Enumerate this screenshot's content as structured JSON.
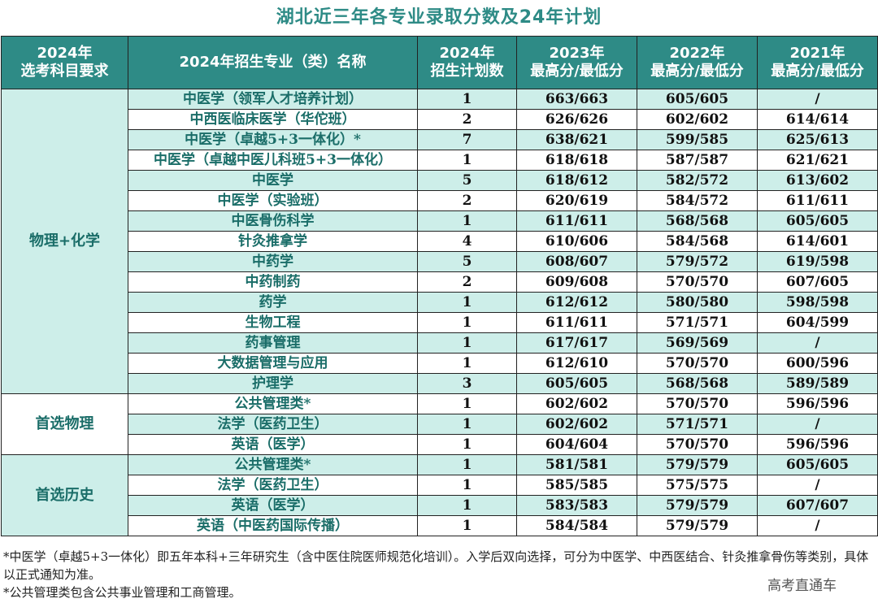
{
  "title": "湖北近三年各专业录取分数及24年计划",
  "headers": [
    [
      "2024年",
      "选考科目要求"
    ],
    [
      "2024年招生专业（类）名称"
    ],
    [
      "2024年",
      "招生计划数"
    ],
    [
      "2023年",
      "最高分/最低分"
    ],
    [
      "2022年",
      "最高分/最低分"
    ],
    [
      "2021年",
      "最高分/最低分"
    ]
  ],
  "groups": [
    {
      "subject": "物理+化学",
      "rows": [
        {
          "major": "中医学（领军人才培养计划）",
          "plan": "1",
          "y2023": "663/663",
          "y2022": "605/605",
          "y2021": "/"
        },
        {
          "major": "中西医临床医学（华佗班）",
          "plan": "2",
          "y2023": "626/626",
          "y2022": "602/602",
          "y2021": "614/614"
        },
        {
          "major": "中医学（卓越5+3一体化）*",
          "plan": "7",
          "y2023": "638/621",
          "y2022": "599/585",
          "y2021": "625/613"
        },
        {
          "major": "中医学（卓越中医儿科班5+3一体化）",
          "plan": "1",
          "y2023": "618/618",
          "y2022": "587/587",
          "y2021": "621/621"
        },
        {
          "major": "中医学",
          "plan": "5",
          "y2023": "618/612",
          "y2022": "582/572",
          "y2021": "613/602"
        },
        {
          "major": "中医学（实验班）",
          "plan": "2",
          "y2023": "620/619",
          "y2022": "584/572",
          "y2021": "611/611"
        },
        {
          "major": "中医骨伤科学",
          "plan": "1",
          "y2023": "611/611",
          "y2022": "568/568",
          "y2021": "605/605"
        },
        {
          "major": "针灸推拿学",
          "plan": "4",
          "y2023": "610/606",
          "y2022": "584/568",
          "y2021": "614/601"
        },
        {
          "major": "中药学",
          "plan": "5",
          "y2023": "608/607",
          "y2022": "579/572",
          "y2021": "619/598"
        },
        {
          "major": "中药制药",
          "plan": "2",
          "y2023": "609/608",
          "y2022": "570/570",
          "y2021": "607/605"
        },
        {
          "major": "药学",
          "plan": "1",
          "y2023": "612/612",
          "y2022": "580/580",
          "y2021": "598/598"
        },
        {
          "major": "生物工程",
          "plan": "1",
          "y2023": "611/611",
          "y2022": "571/571",
          "y2021": "604/599"
        },
        {
          "major": "药事管理",
          "plan": "1",
          "y2023": "617/617",
          "y2022": "569/569",
          "y2021": "/"
        },
        {
          "major": "大数据管理与应用",
          "plan": "1",
          "y2023": "612/610",
          "y2022": "570/570",
          "y2021": "600/596"
        },
        {
          "major": "护理学",
          "plan": "3",
          "y2023": "605/605",
          "y2022": "568/568",
          "y2021": "589/589"
        }
      ]
    },
    {
      "subject": "首选物理",
      "rows": [
        {
          "major": "公共管理类*",
          "plan": "1",
          "y2023": "602/602",
          "y2022": "570/570",
          "y2021": "596/596"
        },
        {
          "major": "法学（医药卫生）",
          "plan": "1",
          "y2023": "602/602",
          "y2022": "571/571",
          "y2021": "/"
        },
        {
          "major": "英语（医学）",
          "plan": "1",
          "y2023": "604/604",
          "y2022": "570/570",
          "y2021": "596/596"
        }
      ]
    },
    {
      "subject": "首选历史",
      "rows": [
        {
          "major": "公共管理类*",
          "plan": "1",
          "y2023": "581/581",
          "y2022": "579/579",
          "y2021": "605/605"
        },
        {
          "major": "法学（医药卫生）",
          "plan": "1",
          "y2023": "585/585",
          "y2022": "575/575",
          "y2021": "/"
        },
        {
          "major": "英语（医学）",
          "plan": "1",
          "y2023": "583/583",
          "y2022": "579/579",
          "y2021": "607/607"
        },
        {
          "major": "英语（中医药国际传播）",
          "plan": "1",
          "y2023": "584/584",
          "y2022": "579/579",
          "y2021": "/"
        }
      ]
    }
  ],
  "notes": [
    "*中医学（卓越5+3一体化）即五年本科+三年研究生（含中医住院医师规范化培训）。入学后双向选择，可分为中医学、中西医结合、针灸推拿骨伤等类别，具体以正式通知为准。",
    "*公共管理类包含公共事业管理和工商管理。"
  ],
  "watermark": "高考直通车",
  "colors": {
    "header_bg": "#2e8b86",
    "light_row": "#cdeee9",
    "text_green": "#1a6d68"
  }
}
